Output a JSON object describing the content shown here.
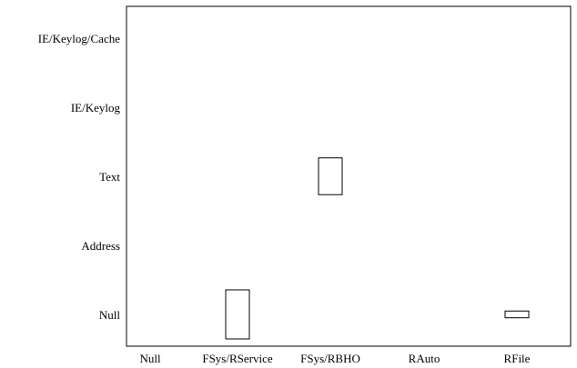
{
  "chart_data": {
    "type": "scatter",
    "title": "",
    "xlabel": "",
    "ylabel": "",
    "x_categories": [
      "Null",
      "FSys/RService",
      "FSys/RBHO",
      "RAuto",
      "RFile"
    ],
    "y_categories": [
      "Null",
      "Address",
      "Text",
      "IE/Keylog",
      "IE/Keylog/Cache"
    ],
    "boxes": [
      {
        "x": "FSys/RService",
        "y": "Null",
        "weight": 1.0
      },
      {
        "x": "FSys/RBHO",
        "y": "Text",
        "weight": 0.75
      },
      {
        "x": "RFile",
        "y": "Null",
        "weight": 0.25
      }
    ],
    "grid": false,
    "legend": "none",
    "colors": {
      "stroke": "#000000",
      "fill": "#ffffff"
    }
  }
}
